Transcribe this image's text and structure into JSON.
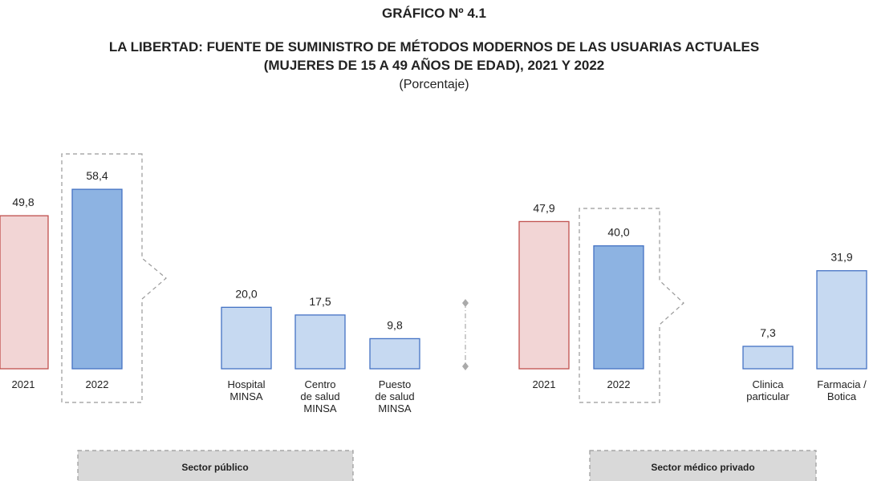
{
  "chart_data": {
    "type": "bar",
    "title": [
      "GRÁFICO Nº 4.1",
      "LA LIBERTAD: FUENTE DE SUMINISTRO DE MÉTODOS MODERNOS DE LAS USUARIAS  ACTUALES",
      "(MUJERES DE 15 A 49 AÑOS DE EDAD),  2021 Y 2022"
    ],
    "subtitle": "(Porcentaje)",
    "categories": [
      "2021",
      "2022",
      "Hospital\nMINSA",
      "Centro\nde salud\nMINSA",
      "Puesto\nde salud\nMINSA",
      "2021",
      "2022",
      "Clinica\nparticular",
      "Farmacia /\nBotica"
    ],
    "values": [
      49.8,
      58.4,
      20.0,
      17.5,
      9.8,
      47.9,
      40.0,
      7.3,
      31.9
    ],
    "value_labels": [
      "49,8",
      "58,4",
      "20,0",
      "17,5",
      "9,8",
      "47,9",
      "40,0",
      "7,3",
      "31,9"
    ],
    "colors": [
      "#f2d5d5",
      "#8db3e2",
      "#c6d9f1",
      "#c6d9f1",
      "#c6d9f1",
      "#f2d5d5",
      "#8db3e2",
      "#c6d9f1",
      "#c6d9f1"
    ],
    "groups": [
      "Sector público",
      "Sector médico privado"
    ],
    "ylim": [
      0,
      60
    ]
  }
}
